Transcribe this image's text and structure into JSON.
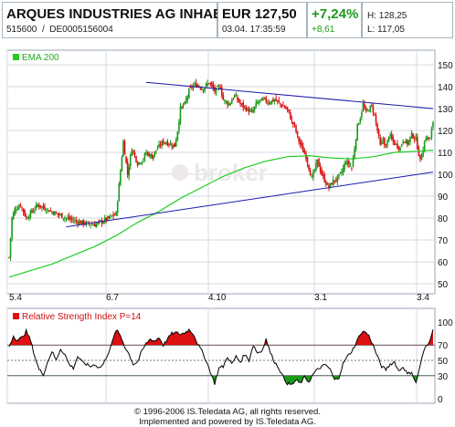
{
  "header": {
    "name": "ARQUES INDUSTRIES AG INHAB...",
    "wkn": "515600",
    "separator": "/",
    "isin": "DE0005156004",
    "price": "EUR 127,50",
    "datetime": "03.04. 17:35:59",
    "change_pct": "+7,24%",
    "change_abs": "+8,61",
    "high": "H: 128,25",
    "low": "L: 117,05"
  },
  "chart_data": [
    {
      "type": "candlestick",
      "legend": [
        "EMA 200"
      ],
      "ylim": [
        50,
        150
      ],
      "yticks": [
        50,
        60,
        70,
        80,
        90,
        100,
        110,
        120,
        130,
        140,
        150
      ],
      "xticks": [
        "5.4",
        "6.7",
        "4.10",
        "3.1",
        "3.4"
      ],
      "grid": true,
      "watermark": "broker",
      "colors": {
        "up": "#1a9a1a",
        "down": "#dd1111",
        "ema": "#22cc22",
        "trend": "#1a1aaa"
      },
      "price_path": [
        [
          0,
          62
        ],
        [
          2,
          80
        ],
        [
          4,
          84
        ],
        [
          8,
          86
        ],
        [
          12,
          80
        ],
        [
          20,
          86
        ],
        [
          30,
          83
        ],
        [
          40,
          80
        ],
        [
          50,
          78
        ],
        [
          60,
          77
        ],
        [
          70,
          80
        ],
        [
          75,
          82
        ],
        [
          77,
          95
        ],
        [
          80,
          115
        ],
        [
          83,
          100
        ],
        [
          86,
          112
        ],
        [
          90,
          105
        ],
        [
          94,
          107
        ],
        [
          96,
          110
        ],
        [
          100,
          108
        ],
        [
          104,
          112
        ],
        [
          108,
          115
        ],
        [
          112,
          114
        ],
        [
          116,
          113
        ],
        [
          118,
          120
        ],
        [
          120,
          130
        ],
        [
          123,
          132
        ],
        [
          126,
          138
        ],
        [
          128,
          140
        ],
        [
          132,
          141
        ],
        [
          136,
          139
        ],
        [
          140,
          142
        ],
        [
          144,
          138
        ],
        [
          148,
          140
        ],
        [
          150,
          134
        ],
        [
          154,
          132
        ],
        [
          158,
          136
        ],
        [
          162,
          132
        ],
        [
          166,
          130
        ],
        [
          170,
          128
        ],
        [
          174,
          133
        ],
        [
          178,
          134
        ],
        [
          182,
          133
        ],
        [
          186,
          134
        ],
        [
          190,
          132
        ],
        [
          194,
          130
        ],
        [
          196,
          128
        ],
        [
          198,
          124
        ],
        [
          200,
          122
        ],
        [
          202,
          117
        ],
        [
          205,
          112
        ],
        [
          208,
          108
        ],
        [
          210,
          103
        ],
        [
          212,
          98
        ],
        [
          214,
          102
        ],
        [
          216,
          106
        ],
        [
          219,
          100
        ],
        [
          222,
          96
        ],
        [
          224,
          94
        ],
        [
          227,
          97
        ],
        [
          230,
          98
        ],
        [
          233,
          101
        ],
        [
          236,
          106
        ],
        [
          240,
          103
        ],
        [
          242,
          112
        ],
        [
          244,
          122
        ],
        [
          246,
          126
        ],
        [
          248,
          132
        ],
        [
          250,
          128
        ],
        [
          252,
          130
        ],
        [
          254,
          131
        ],
        [
          256,
          127
        ],
        [
          258,
          120
        ],
        [
          260,
          113
        ],
        [
          262,
          116
        ],
        [
          264,
          112
        ],
        [
          266,
          118
        ],
        [
          270,
          114
        ],
        [
          274,
          112
        ],
        [
          276,
          116
        ],
        [
          279,
          114
        ],
        [
          282,
          118
        ],
        [
          285,
          116
        ],
        [
          288,
          106
        ],
        [
          290,
          112
        ],
        [
          292,
          117
        ],
        [
          295,
          116
        ],
        [
          297,
          124
        ]
      ],
      "ema200_path": [
        [
          0,
          53
        ],
        [
          15,
          56
        ],
        [
          30,
          59
        ],
        [
          45,
          63
        ],
        [
          60,
          67
        ],
        [
          75,
          72
        ],
        [
          90,
          78
        ],
        [
          105,
          83
        ],
        [
          120,
          89
        ],
        [
          135,
          94
        ],
        [
          150,
          99
        ],
        [
          165,
          103
        ],
        [
          180,
          106
        ],
        [
          195,
          108
        ],
        [
          210,
          108.5
        ],
        [
          225,
          107.5
        ],
        [
          240,
          107
        ],
        [
          255,
          108
        ],
        [
          270,
          110
        ],
        [
          285,
          110.5
        ],
        [
          297,
          111
        ]
      ],
      "trendline_upper": [
        [
          96,
          142
        ],
        [
          297,
          130
        ]
      ],
      "trendline_lower": [
        [
          40,
          76
        ],
        [
          297,
          101
        ]
      ]
    },
    {
      "type": "line",
      "title": "Relative Strength Index P=14",
      "ylim": [
        0,
        100
      ],
      "yticks": [
        0,
        30,
        50,
        70,
        100
      ],
      "reference_lines": [
        30,
        50,
        70
      ],
      "colors": {
        "line": "#000000",
        "overbought": "#dd1111",
        "oversold": "#1a9a1a",
        "title": "#cc1111"
      },
      "rsi_path": [
        [
          0,
          68
        ],
        [
          3,
          82
        ],
        [
          6,
          76
        ],
        [
          9,
          80
        ],
        [
          12,
          88
        ],
        [
          15,
          76
        ],
        [
          18,
          55
        ],
        [
          21,
          38
        ],
        [
          24,
          32
        ],
        [
          27,
          48
        ],
        [
          30,
          62
        ],
        [
          33,
          50
        ],
        [
          36,
          65
        ],
        [
          39,
          58
        ],
        [
          42,
          45
        ],
        [
          45,
          40
        ],
        [
          48,
          55
        ],
        [
          51,
          48
        ],
        [
          54,
          45
        ],
        [
          57,
          42
        ],
        [
          60,
          45
        ],
        [
          63,
          40
        ],
        [
          66,
          45
        ],
        [
          69,
          58
        ],
        [
          72,
          72
        ],
        [
          75,
          90
        ],
        [
          78,
          82
        ],
        [
          81,
          68
        ],
        [
          84,
          58
        ],
        [
          87,
          45
        ],
        [
          90,
          48
        ],
        [
          93,
          62
        ],
        [
          96,
          72
        ],
        [
          99,
          78
        ],
        [
          102,
          75
        ],
        [
          105,
          80
        ],
        [
          108,
          70
        ],
        [
          111,
          78
        ],
        [
          114,
          85
        ],
        [
          117,
          86
        ],
        [
          120,
          84
        ],
        [
          123,
          86
        ],
        [
          126,
          90
        ],
        [
          129,
          85
        ],
        [
          132,
          72
        ],
        [
          135,
          62
        ],
        [
          138,
          50
        ],
        [
          141,
          35
        ],
        [
          144,
          20
        ],
        [
          147,
          40
        ],
        [
          150,
          42
        ],
        [
          153,
          55
        ],
        [
          156,
          45
        ],
        [
          159,
          55
        ],
        [
          162,
          48
        ],
        [
          165,
          58
        ],
        [
          168,
          50
        ],
        [
          171,
          70
        ],
        [
          174,
          60
        ],
        [
          177,
          62
        ],
        [
          180,
          78
        ],
        [
          183,
          60
        ],
        [
          186,
          48
        ],
        [
          189,
          40
        ],
        [
          192,
          28
        ],
        [
          195,
          20
        ],
        [
          198,
          18
        ],
        [
          201,
          24
        ],
        [
          204,
          20
        ],
        [
          207,
          28
        ],
        [
          210,
          22
        ],
        [
          213,
          32
        ],
        [
          216,
          38
        ],
        [
          219,
          42
        ],
        [
          222,
          44
        ],
        [
          225,
          38
        ],
        [
          228,
          24
        ],
        [
          231,
          28
        ],
        [
          234,
          46
        ],
        [
          237,
          55
        ],
        [
          240,
          62
        ],
        [
          243,
          72
        ],
        [
          246,
          85
        ],
        [
          249,
          88
        ],
        [
          252,
          82
        ],
        [
          255,
          70
        ],
        [
          258,
          55
        ],
        [
          261,
          42
        ],
        [
          264,
          38
        ],
        [
          267,
          45
        ],
        [
          270,
          48
        ],
        [
          273,
          36
        ],
        [
          276,
          42
        ],
        [
          279,
          32
        ],
        [
          282,
          35
        ],
        [
          285,
          20
        ],
        [
          288,
          44
        ],
        [
          291,
          65
        ],
        [
          294,
          72
        ],
        [
          297,
          92
        ]
      ],
      "rsi_x_count": 297
    }
  ],
  "footer": {
    "line1": "© 1996-2006 IS.Teledata AG, all rights reserved.",
    "line2": "Implemented and powered by IS.Teledata AG."
  }
}
